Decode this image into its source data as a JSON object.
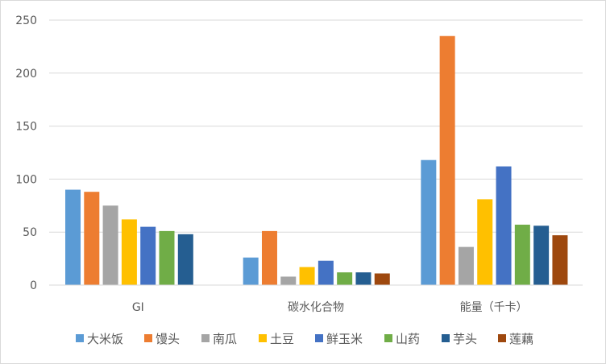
{
  "chart_data": {
    "type": "bar",
    "title": "",
    "xlabel": "",
    "ylabel": "",
    "ylim": [
      0,
      250
    ],
    "yticks": [
      0,
      50,
      100,
      150,
      200,
      250
    ],
    "grid": true,
    "legend_position": "bottom",
    "categories": [
      "GI",
      "碳水化合物",
      "能量（千卡）"
    ],
    "series": [
      {
        "name": "大米饭",
        "color": "#5b9bd5",
        "values": [
          90,
          26,
          118
        ]
      },
      {
        "name": "馒头",
        "color": "#ed7d31",
        "values": [
          88,
          51,
          235
        ]
      },
      {
        "name": "南瓜",
        "color": "#a5a5a5",
        "values": [
          75,
          8,
          36
        ]
      },
      {
        "name": "土豆",
        "color": "#ffc000",
        "values": [
          62,
          17,
          81
        ]
      },
      {
        "name": "鲜玉米",
        "color": "#4472c4",
        "values": [
          55,
          23,
          112
        ]
      },
      {
        "name": "山药",
        "color": "#70ad47",
        "values": [
          51,
          12,
          57
        ]
      },
      {
        "name": "芋头",
        "color": "#255e91",
        "values": [
          48,
          12,
          56
        ]
      },
      {
        "name": "莲藕",
        "color": "#9e480e",
        "values": [
          null,
          11,
          47
        ]
      }
    ]
  }
}
